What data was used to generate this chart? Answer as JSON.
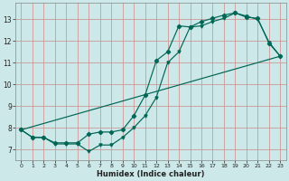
{
  "xlabel": "Humidex (Indice chaleur)",
  "bg_color": "#cce8e8",
  "grid_color": "#cc9999",
  "line_color": "#006655",
  "xlim": [
    -0.5,
    23.5
  ],
  "ylim": [
    6.5,
    13.75
  ],
  "yticks": [
    7,
    8,
    9,
    10,
    11,
    12,
    13
  ],
  "xticks": [
    0,
    1,
    2,
    3,
    4,
    5,
    6,
    7,
    8,
    9,
    10,
    11,
    12,
    13,
    14,
    15,
    16,
    17,
    18,
    19,
    20,
    21,
    22,
    23
  ],
  "line1_x": [
    0,
    1,
    2,
    3,
    4,
    5,
    6,
    7,
    8,
    9,
    10,
    11,
    12,
    13,
    14,
    15,
    16,
    17,
    18,
    19,
    20,
    21,
    22,
    23
  ],
  "line1_y": [
    7.9,
    7.55,
    7.55,
    7.3,
    7.3,
    7.3,
    7.7,
    7.8,
    7.8,
    7.9,
    8.55,
    9.5,
    11.1,
    11.5,
    12.7,
    12.65,
    12.9,
    13.05,
    13.2,
    13.3,
    13.1,
    13.05,
    11.9,
    11.3
  ],
  "line2_x": [
    0,
    1,
    2,
    3,
    4,
    5,
    6,
    7,
    8,
    9,
    10,
    11,
    12,
    13,
    14,
    15,
    16,
    17,
    18,
    19,
    20,
    21,
    22,
    23
  ],
  "line2_y": [
    7.9,
    7.55,
    7.55,
    7.25,
    7.25,
    7.25,
    6.9,
    7.2,
    7.2,
    7.55,
    8.0,
    8.55,
    9.4,
    11.0,
    11.5,
    12.65,
    12.7,
    12.9,
    13.05,
    13.3,
    13.15,
    13.0,
    11.95,
    11.3
  ],
  "line3_x": [
    0,
    23
  ],
  "line3_y": [
    7.9,
    11.3
  ]
}
